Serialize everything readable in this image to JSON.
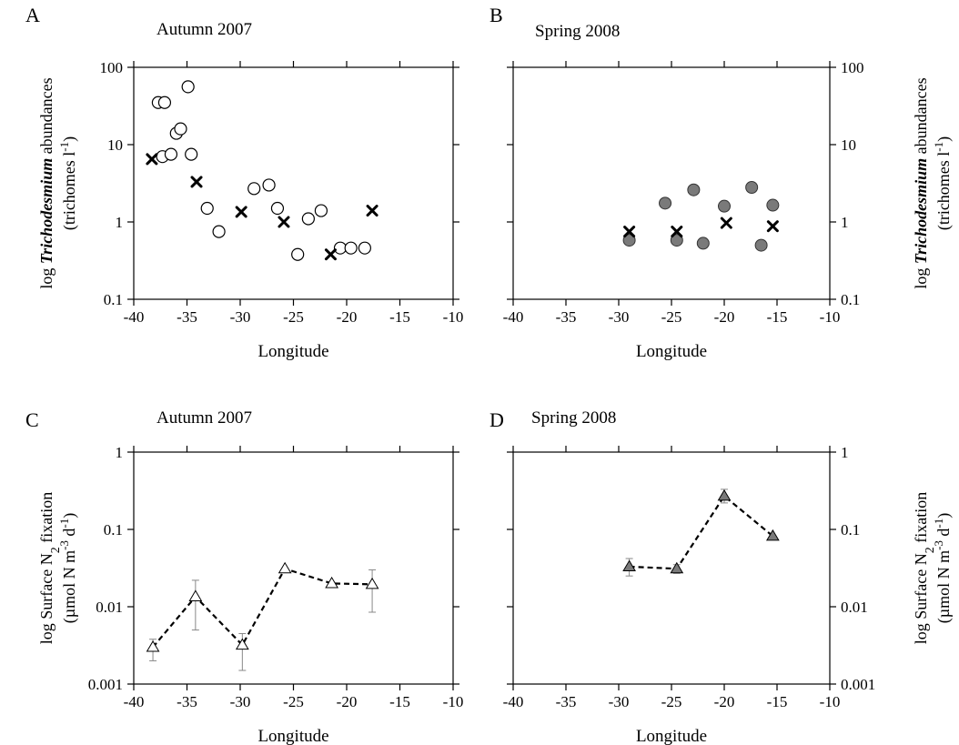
{
  "chart_data": [
    {
      "panel": "A",
      "title": "Autumn 2007",
      "type": "scatter",
      "xlabel": "Longitude",
      "ylabel": "log Trichodesmium abundances (trichomes l-1)",
      "xlim": [
        -40,
        -10
      ],
      "ylim": [
        0.1,
        100
      ],
      "yscale": "log",
      "xticks": [
        "-40",
        "-35",
        "-30",
        "-25",
        "-20",
        "-15",
        "-10"
      ],
      "yticks": [
        "0.1",
        "1",
        "10",
        "100"
      ],
      "series": [
        {
          "marker": "open-circle",
          "x": [
            -37.7,
            -37.1,
            -37.3,
            -36.5,
            -36.0,
            -35.6,
            -34.9,
            -34.6,
            -33.1,
            -32.0,
            -28.7,
            -27.3,
            -26.5,
            -24.6,
            -23.6,
            -22.4,
            -20.6,
            -19.6,
            -18.3
          ],
          "y": [
            35,
            35,
            7,
            7.5,
            14,
            16,
            56,
            7.5,
            1.5,
            0.75,
            2.7,
            3.0,
            1.5,
            0.38,
            1.1,
            1.4,
            0.46,
            0.46,
            0.46
          ]
        },
        {
          "marker": "x",
          "x": [
            -38.3,
            -34.1,
            -29.9,
            -25.9,
            -21.5,
            -17.6
          ],
          "y": [
            6.5,
            3.3,
            1.35,
            1.0,
            0.38,
            1.4
          ]
        }
      ]
    },
    {
      "panel": "B",
      "title": "Spring 2008",
      "type": "scatter",
      "xlabel": "Longitude",
      "ylabel": "log Trichodesmium abundances (trichomes l-1)",
      "xlim": [
        -40,
        -10
      ],
      "ylim": [
        0.1,
        100
      ],
      "yscale": "log",
      "xticks": [
        "-40",
        "-35",
        "-30",
        "-25",
        "-20",
        "-15",
        "-10"
      ],
      "yticks": [
        "0.1",
        "1",
        "10",
        "100"
      ],
      "series": [
        {
          "marker": "filled-circle",
          "x": [
            -29.0,
            -24.5,
            -25.6,
            -22.9,
            -22.0,
            -20.0,
            -17.4,
            -16.5,
            -15.4
          ],
          "y": [
            0.58,
            0.58,
            1.75,
            2.6,
            0.53,
            1.6,
            2.8,
            0.5,
            1.65
          ]
        },
        {
          "marker": "x",
          "x": [
            -29.0,
            -24.5,
            -19.8,
            -15.4
          ],
          "y": [
            0.75,
            0.75,
            0.97,
            0.88
          ]
        }
      ]
    },
    {
      "panel": "C",
      "title": "Autumn 2007",
      "type": "line",
      "xlabel": "Longitude",
      "ylabel": "log Surface N2 fixation (µmol N m-3 d-1)",
      "xlim": [
        -40,
        -10
      ],
      "ylim": [
        0.001,
        1
      ],
      "yscale": "log",
      "xticks": [
        "-40",
        "-35",
        "-30",
        "-25",
        "-20",
        "-15",
        "-10"
      ],
      "yticks": [
        "0.001",
        "0.01",
        "0.1",
        "1"
      ],
      "series": [
        {
          "marker": "open-triangle",
          "line": "dashed",
          "x": [
            -38.2,
            -34.2,
            -29.8,
            -25.8,
            -21.4,
            -17.6
          ],
          "y": [
            0.003,
            0.0135,
            0.0032,
            0.031,
            0.02,
            0.0195
          ],
          "err_low": [
            0.002,
            0.005,
            0.0015,
            0.031,
            0.02,
            0.0085
          ],
          "err_high": [
            0.0038,
            0.022,
            0.0045,
            0.031,
            0.02,
            0.03
          ]
        }
      ]
    },
    {
      "panel": "D",
      "title": "Spring 2008",
      "type": "line",
      "xlabel": "Longitude",
      "ylabel": "log Surface N2 fixation (µmol N m-3 d-1)",
      "xlim": [
        -40,
        -10
      ],
      "ylim": [
        0.001,
        1
      ],
      "yscale": "log",
      "xticks": [
        "-40",
        "-35",
        "-30",
        "-25",
        "-20",
        "-15",
        "-10"
      ],
      "yticks": [
        "0.001",
        "0.01",
        "0.1",
        "1"
      ],
      "series": [
        {
          "marker": "filled-triangle",
          "line": "dashed",
          "x": [
            -29.0,
            -24.5,
            -20.0,
            -15.4
          ],
          "y": [
            0.033,
            0.031,
            0.27,
            0.082
          ],
          "err_low": [
            0.025,
            0.027,
            0.22,
            0.082
          ],
          "err_high": [
            0.042,
            0.035,
            0.33,
            0.082
          ]
        }
      ]
    }
  ]
}
